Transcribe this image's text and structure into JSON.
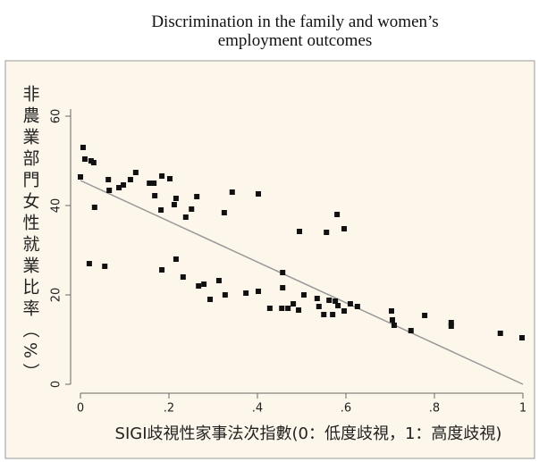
{
  "chart_data": {
    "type": "scatter",
    "title": "Discrimination in the family and women’s employment outcomes",
    "x_label": "SIGI歧視性家事法次指數(0：低度歧視，1：高度歧視)",
    "y_label": "非農業部門女性就業比率（%）",
    "xlim": [
      0,
      1
    ],
    "ylim": [
      0,
      60
    ],
    "xticks": [
      0,
      {
        "value": 0.2,
        "label": ".2"
      },
      {
        "value": 0.4,
        "label": ".4"
      },
      {
        "value": 0.6,
        "label": ".6"
      },
      {
        "value": 0.8,
        "label": ".8"
      },
      1
    ],
    "yticks": [
      0,
      20,
      40,
      60
    ],
    "color": "#111111",
    "x": [
      0,
      0.006,
      0.01,
      0.024,
      0.03,
      0.032,
      0.02,
      0.055,
      0.063,
      0.065,
      0.087,
      0.097,
      0.113,
      0.125,
      0.156,
      0.166,
      0.168,
      0.182,
      0.184,
      0.202,
      0.184,
      0.212,
      0.216,
      0.216,
      0.238,
      0.251,
      0.263,
      0.232,
      0.267,
      0.279,
      0.293,
      0.313,
      0.325,
      0.327,
      0.343,
      0.374,
      0.402,
      0.402,
      0.428,
      0.455,
      0.457,
      0.457,
      0.469,
      0.481,
      0.493,
      0.495,
      0.505,
      0.535,
      0.539,
      0.55,
      0.556,
      0.562,
      0.57,
      0.576,
      0.58,
      0.582,
      0.596,
      0.596,
      0.61,
      0.626,
      0.703,
      0.705,
      0.709,
      0.747,
      0.778,
      0.838,
      0.838,
      0.949,
      0.998
    ],
    "values": [
      46.4,
      53,
      50.4,
      50,
      49.6,
      39.6,
      27,
      26.4,
      45.8,
      43.4,
      44,
      44.6,
      45.8,
      47.4,
      45,
      45,
      42.2,
      39,
      46.6,
      46,
      25.6,
      40.2,
      41.6,
      28,
      37.4,
      39.2,
      42,
      24,
      22,
      22.4,
      19,
      23.2,
      38.4,
      20,
      43,
      20.4,
      42.6,
      20.8,
      17,
      17,
      25,
      21.6,
      17,
      18,
      16.6,
      34.2,
      20,
      19.2,
      17.4,
      15.6,
      34,
      18.8,
      15.6,
      18.6,
      38,
      17.6,
      34.8,
      16.4,
      18,
      17.4,
      16.4,
      14.4,
      13.2,
      12,
      15.4,
      13.8,
      13,
      11.4,
      10.4
    ],
    "fit_line": {
      "x": [
        0,
        1
      ],
      "y": [
        45.6,
        0
      ],
      "color": "#999999"
    }
  }
}
